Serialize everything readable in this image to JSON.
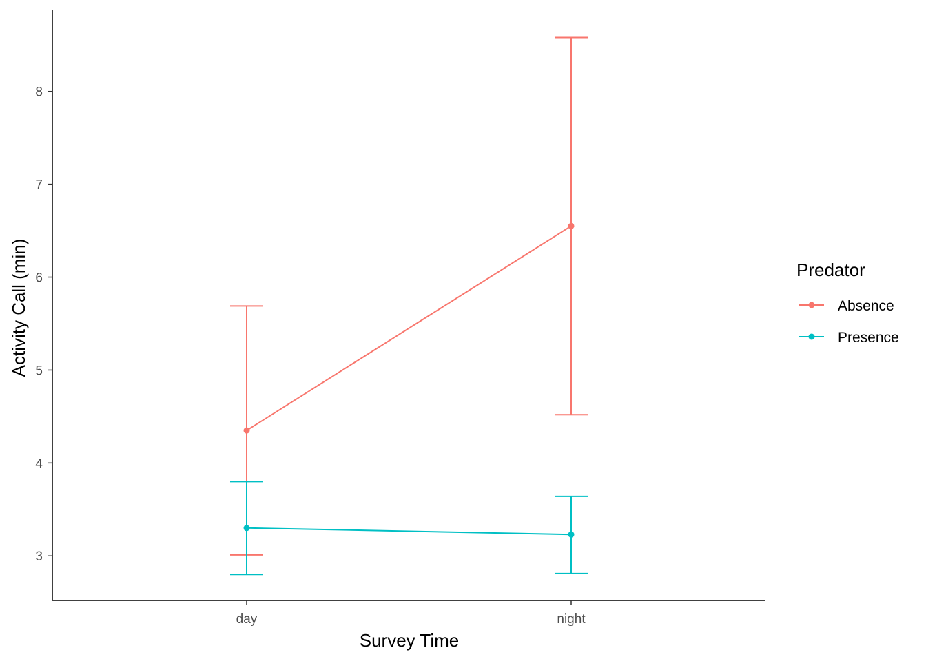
{
  "chart_data": {
    "type": "line",
    "title": "",
    "xlabel": "Survey Time",
    "ylabel": "Activity Call (min)",
    "categories": [
      "day",
      "night"
    ],
    "ylim": [
      2.52,
      8.88
    ],
    "yticks": [
      3,
      4,
      5,
      6,
      7,
      8
    ],
    "grid": false,
    "legend": {
      "title": "Predator",
      "position": "right"
    },
    "series": [
      {
        "name": "Absence",
        "color": "#F8766D",
        "values": [
          4.35,
          6.55
        ],
        "lower": [
          3.01,
          4.52
        ],
        "upper": [
          5.69,
          8.58
        ]
      },
      {
        "name": "Presence",
        "color": "#00BFC4",
        "values": [
          3.3,
          3.23
        ],
        "lower": [
          2.8,
          2.81
        ],
        "upper": [
          3.8,
          3.64
        ]
      }
    ]
  }
}
